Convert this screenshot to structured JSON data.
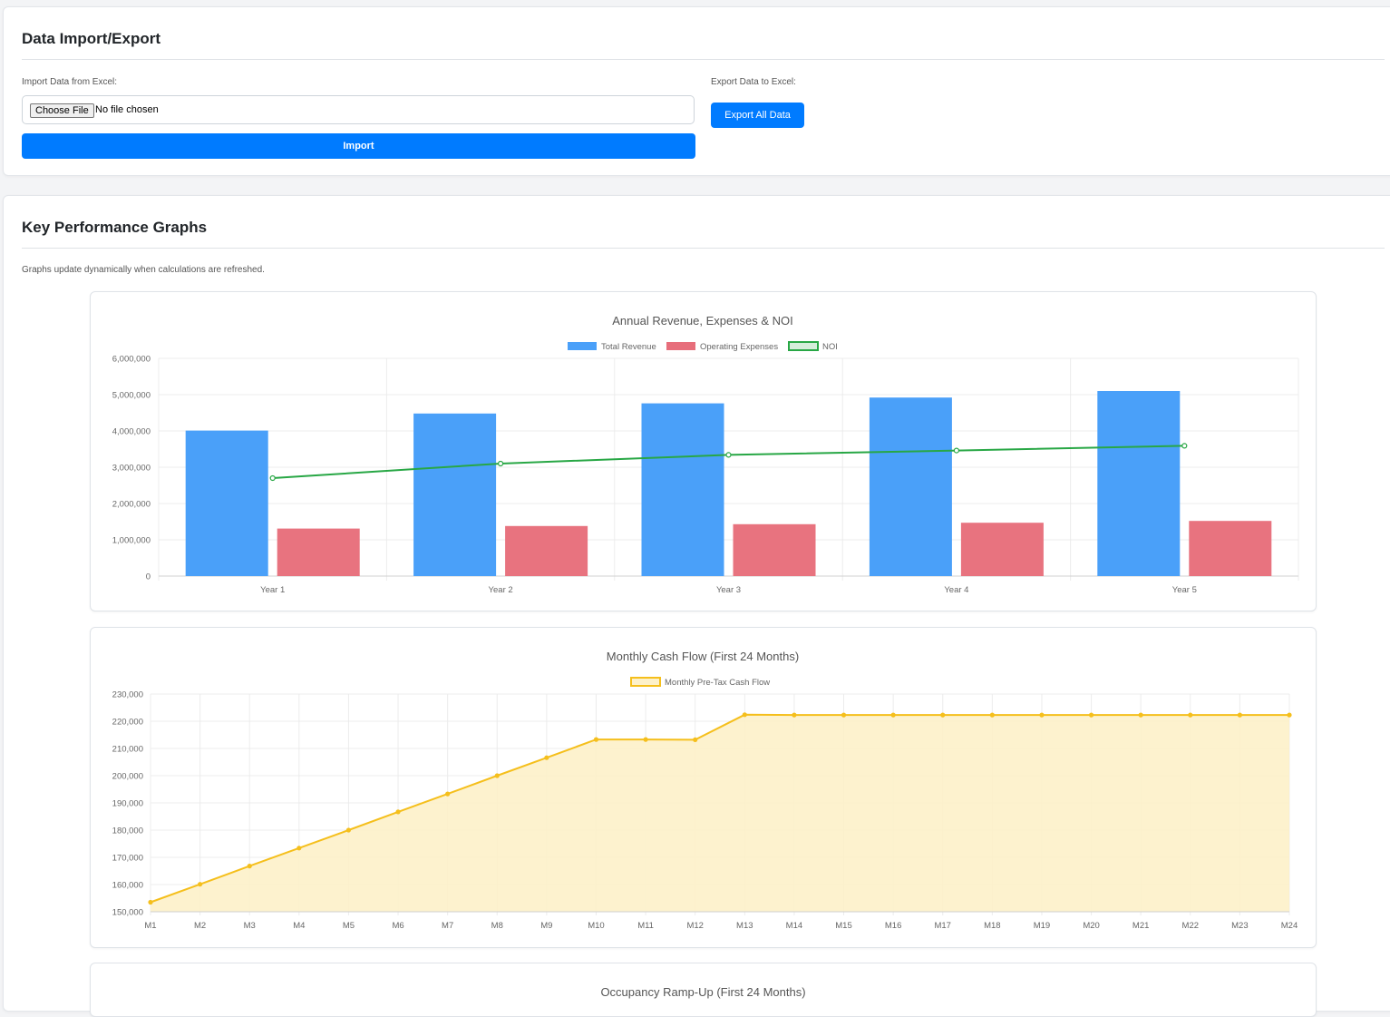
{
  "import_export": {
    "title": "Data Import/Export",
    "import_label": "Import Data from Excel:",
    "file_button": "Choose File",
    "file_status": "No file chosen",
    "import_button": "Import",
    "export_label": "Export Data to Excel:",
    "export_button": "Export All Data",
    "accent_color": "#007bff"
  },
  "graphs": {
    "title": "Key Performance Graphs",
    "note": "Graphs update dynamically when calculations are refreshed."
  },
  "chart_data": [
    {
      "type": "bar",
      "title": "Annual Revenue, Expenses & NOI",
      "categories": [
        "Year 1",
        "Year 2",
        "Year 3",
        "Year 4",
        "Year 5"
      ],
      "ylim": [
        0,
        6000000
      ],
      "yticks": [
        0,
        1000000,
        2000000,
        3000000,
        4000000,
        5000000,
        6000000
      ],
      "ytick_labels": [
        "0",
        "1,000,000",
        "2,000,000",
        "3,000,000",
        "4,000,000",
        "5,000,000",
        "6,000,000"
      ],
      "grid": true,
      "legend": "top",
      "series": [
        {
          "name": "Total Revenue",
          "kind": "bar",
          "color": "#4aa0f9",
          "values": [
            4010000,
            4480000,
            4760000,
            4920000,
            5100000
          ]
        },
        {
          "name": "Operating Expenses",
          "kind": "bar",
          "color": "#e76e7b",
          "values": [
            1310000,
            1380000,
            1430000,
            1470000,
            1520000
          ]
        },
        {
          "name": "NOI",
          "kind": "line",
          "color": "#28a745",
          "values": [
            2700000,
            3100000,
            3340000,
            3460000,
            3590000
          ]
        }
      ]
    },
    {
      "type": "area",
      "title": "Monthly Cash Flow (First 24 Months)",
      "categories": [
        "M1",
        "M2",
        "M3",
        "M4",
        "M5",
        "M6",
        "M7",
        "M8",
        "M9",
        "M10",
        "M11",
        "M12",
        "M13",
        "M14",
        "M15",
        "M16",
        "M17",
        "M18",
        "M19",
        "M20",
        "M21",
        "M22",
        "M23",
        "M24"
      ],
      "ylim": [
        150000,
        230000
      ],
      "yticks": [
        150000,
        160000,
        170000,
        180000,
        190000,
        200000,
        210000,
        220000,
        230000
      ],
      "ytick_labels": [
        "150,000",
        "160,000",
        "170,000",
        "180,000",
        "190,000",
        "200,000",
        "210,000",
        "220,000",
        "230,000"
      ],
      "grid": true,
      "legend": "top",
      "series": [
        {
          "name": "Monthly Pre-Tax Cash Flow",
          "color": "#f5bf1c",
          "fill": "#fdf1c9",
          "values": [
            153500,
            160100,
            166800,
            173400,
            180000,
            186700,
            193300,
            200000,
            206600,
            213300,
            213300,
            213200,
            222400,
            222300,
            222300,
            222300,
            222300,
            222300,
            222300,
            222300,
            222300,
            222300,
            222300,
            222300
          ]
        }
      ]
    },
    {
      "type": "line",
      "title": "Occupancy Ramp-Up (First 24 Months)"
    }
  ]
}
